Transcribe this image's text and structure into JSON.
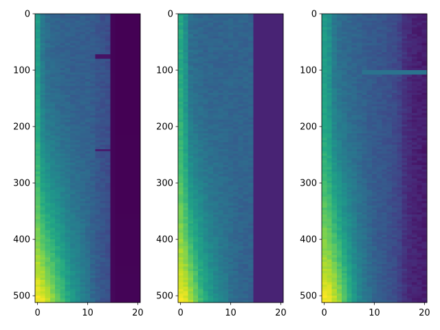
{
  "chart_data": [
    {
      "type": "heatmap",
      "colormap": "viridis",
      "grid": false,
      "x_range": [
        -0.5,
        20.5
      ],
      "y_range": [
        512,
        0
      ],
      "x_ticks": [
        0,
        10,
        20
      ],
      "y_ticks": [
        0,
        100,
        200,
        300,
        400,
        500
      ],
      "x_tick_labels": [
        "0",
        "10",
        "20"
      ],
      "y_tick_labels": [
        "0",
        "100",
        "200",
        "300",
        "400",
        "500"
      ],
      "n_cols": 21,
      "n_rows": 512,
      "dark_from_col": 15,
      "profile": {
        "top": [
          0.55,
          0.4,
          0.35,
          0.33,
          0.32,
          0.31,
          0.31,
          0.3,
          0.3,
          0.3,
          0.3,
          0.29,
          0.27,
          0.25,
          0.24,
          0.01,
          0.0,
          0.0,
          0.0,
          0.0,
          0.0
        ],
        "bottom": [
          1.0,
          0.98,
          0.92,
          0.85,
          0.78,
          0.7,
          0.62,
          0.55,
          0.5,
          0.45,
          0.4,
          0.34,
          0.3,
          0.27,
          0.25,
          0.02,
          0.01,
          0.01,
          0.01,
          0.01,
          0.01
        ]
      },
      "streaks": [
        {
          "row": 75,
          "cols": [
            12,
            14
          ],
          "value": 0.05
        },
        {
          "row": 240,
          "cols": [
            12,
            14
          ],
          "value": 0.08
        }
      ]
    },
    {
      "type": "heatmap",
      "colormap": "viridis",
      "grid": false,
      "x_range": [
        -0.5,
        20.5
      ],
      "y_range": [
        512,
        0
      ],
      "x_ticks": [
        0,
        10,
        20
      ],
      "y_ticks": [
        0,
        100,
        200,
        300,
        400,
        500
      ],
      "x_tick_labels": [
        "0",
        "10",
        "20"
      ],
      "y_tick_labels": [
        "0",
        "100",
        "200",
        "300",
        "400",
        "500"
      ],
      "n_cols": 21,
      "n_rows": 512,
      "dark_from_col": 15,
      "profile": {
        "top": [
          0.6,
          0.5,
          0.36,
          0.34,
          0.33,
          0.32,
          0.32,
          0.32,
          0.32,
          0.32,
          0.32,
          0.32,
          0.32,
          0.32,
          0.32,
          0.1,
          0.1,
          0.1,
          0.1,
          0.1,
          0.1
        ],
        "bottom": [
          1.0,
          0.97,
          0.9,
          0.8,
          0.7,
          0.62,
          0.55,
          0.5,
          0.45,
          0.42,
          0.38,
          0.35,
          0.33,
          0.32,
          0.31,
          0.1,
          0.1,
          0.1,
          0.1,
          0.1,
          0.1
        ]
      },
      "streaks": []
    },
    {
      "type": "heatmap",
      "colormap": "viridis",
      "grid": false,
      "x_range": [
        -0.5,
        20.5
      ],
      "y_range": [
        512,
        0
      ],
      "x_ticks": [
        0,
        10,
        20
      ],
      "y_ticks": [
        0,
        100,
        200,
        300,
        400,
        500
      ],
      "x_tick_labels": [
        "0",
        "10",
        "20"
      ],
      "y_tick_labels": [
        "0",
        "100",
        "200",
        "300",
        "400",
        "500"
      ],
      "n_cols": 21,
      "n_rows": 512,
      "dark_from_col": 21,
      "profile": {
        "top": [
          0.55,
          0.5,
          0.4,
          0.36,
          0.34,
          0.33,
          0.32,
          0.31,
          0.3,
          0.29,
          0.28,
          0.27,
          0.26,
          0.25,
          0.23,
          0.2,
          0.15,
          0.12,
          0.1,
          0.09,
          0.08
        ],
        "bottom": [
          1.0,
          0.98,
          0.93,
          0.85,
          0.75,
          0.65,
          0.56,
          0.48,
          0.42,
          0.37,
          0.33,
          0.3,
          0.28,
          0.26,
          0.23,
          0.2,
          0.15,
          0.12,
          0.1,
          0.09,
          0.08
        ]
      },
      "streaks": [
        {
          "row": 102,
          "cols": [
            8,
            20
          ],
          "value": 0.38
        }
      ]
    }
  ]
}
